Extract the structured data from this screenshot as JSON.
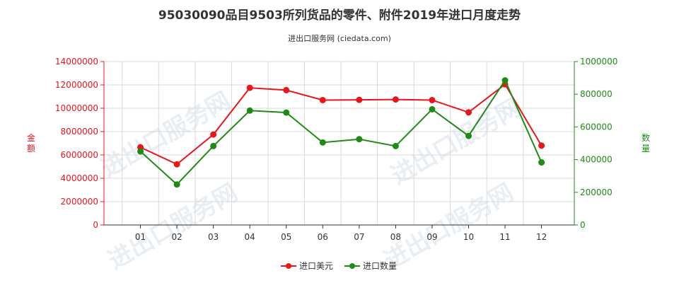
{
  "title": "95030090品目9503所列货品的零件、附件2019年进口月度走势",
  "subtitle": "进出口服务网 (ciedata.com)",
  "watermark": "进出口服务网",
  "colors": {
    "amount": "#e8151b",
    "quantity": "#1f8a16",
    "grid": "#d9d9d9"
  },
  "chart_data": {
    "type": "line",
    "categories": [
      "01",
      "02",
      "03",
      "04",
      "05",
      "06",
      "07",
      "08",
      "09",
      "10",
      "11",
      "12"
    ],
    "series": [
      {
        "name": "进口美元",
        "axis": "left",
        "values": [
          6650000,
          5200000,
          7750000,
          11750000,
          11550000,
          10700000,
          10720000,
          10750000,
          10700000,
          9650000,
          12050000,
          6800000
        ]
      },
      {
        "name": "进口数量",
        "axis": "right",
        "values": [
          450000,
          248000,
          483000,
          700000,
          688000,
          505000,
          525000,
          483000,
          708000,
          545000,
          885000,
          383000
        ]
      }
    ],
    "ylabel_left": "金额",
    "ylabel_right": "数量",
    "ylim_left": [
      0,
      14000000
    ],
    "ylim_right": [
      0,
      1000000
    ],
    "yticks_left": [
      "0",
      "2000000",
      "4000000",
      "6000000",
      "8000000",
      "10000000",
      "12000000",
      "14000000"
    ],
    "yticks_right": [
      "0",
      "200000",
      "400000",
      "600000",
      "800000",
      "1000000"
    ],
    "grid": true,
    "legend_position": "bottom"
  }
}
